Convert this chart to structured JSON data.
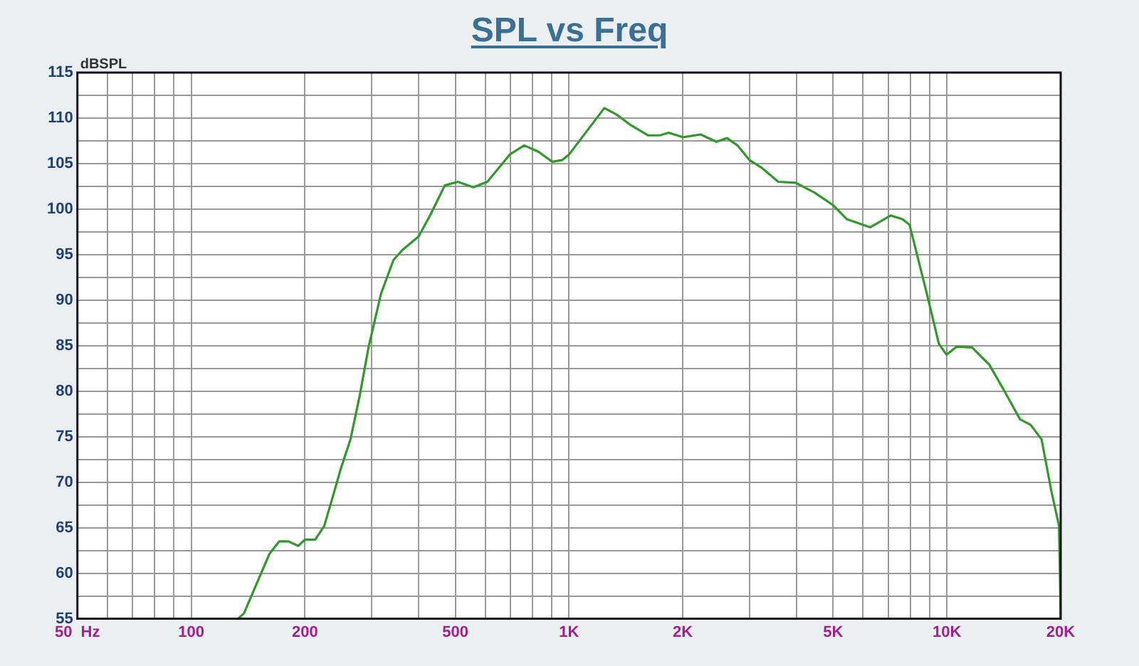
{
  "chart_data": {
    "type": "line",
    "title": "SPL vs Freq",
    "ylabel": "dBSPL",
    "log": "x",
    "grid": true,
    "marker": "none",
    "xlim": [
      50,
      20000
    ],
    "ylim": [
      55,
      115
    ],
    "xticks": [
      {
        "value": 50,
        "label": "50  Hz"
      },
      {
        "value": 60,
        "label": null
      },
      {
        "value": 70,
        "label": null
      },
      {
        "value": 80,
        "label": null
      },
      {
        "value": 90,
        "label": null
      },
      {
        "value": 100,
        "label": "100"
      },
      {
        "value": 200,
        "label": "200"
      },
      {
        "value": 300,
        "label": null
      },
      {
        "value": 400,
        "label": null
      },
      {
        "value": 500,
        "label": "500"
      },
      {
        "value": 600,
        "label": null
      },
      {
        "value": 700,
        "label": null
      },
      {
        "value": 800,
        "label": null
      },
      {
        "value": 900,
        "label": null
      },
      {
        "value": 1000,
        "label": "1K"
      },
      {
        "value": 2000,
        "label": "2K"
      },
      {
        "value": 3000,
        "label": null
      },
      {
        "value": 4000,
        "label": null
      },
      {
        "value": 5000,
        "label": "5K"
      },
      {
        "value": 6000,
        "label": null
      },
      {
        "value": 7000,
        "label": null
      },
      {
        "value": 8000,
        "label": null
      },
      {
        "value": 9000,
        "label": null
      },
      {
        "value": 10000,
        "label": "10K"
      },
      {
        "value": 20000,
        "label": "20K"
      }
    ],
    "yticks": [
      55,
      {
        "value": 57.5,
        "label": null
      },
      60,
      {
        "value": 62.5,
        "label": null
      },
      65,
      {
        "value": 67.5,
        "label": null
      },
      70,
      {
        "value": 72.5,
        "label": null
      },
      75,
      {
        "value": 77.5,
        "label": null
      },
      80,
      {
        "value": 82.5,
        "label": null
      },
      85,
      {
        "value": 87.5,
        "label": null
      },
      90,
      {
        "value": 92.5,
        "label": null
      },
      95,
      {
        "value": 97.5,
        "label": null
      },
      100,
      {
        "value": 102.5,
        "label": null
      },
      105,
      {
        "value": 107.5,
        "label": null
      },
      110,
      {
        "value": 112.5,
        "label": null
      },
      115
    ],
    "x": [
      133,
      138,
      161,
      171,
      181,
      192,
      200,
      213,
      225,
      234,
      249,
      264,
      279,
      295,
      318,
      343,
      362,
      400,
      430,
      469,
      508,
      558,
      608,
      697,
      761,
      830,
      903,
      960,
      1000,
      1240,
      1335,
      1460,
      1620,
      1740,
      1835,
      2000,
      2230,
      2455,
      2620,
      2790,
      3000,
      3220,
      3580,
      3980,
      4470,
      5010,
      5430,
      6270,
      7100,
      7620,
      7960,
      8850,
      9520,
      9980,
      10620,
      11660,
      12950,
      14200,
      15620,
      16660,
      17800,
      18900,
      19800,
      20000
    ],
    "series": [
      {
        "color": "#2f9a2a",
        "values": [
          55,
          55.6,
          62.1,
          63.5,
          63.5,
          63,
          63.7,
          63.7,
          65.2,
          67.6,
          71.5,
          74.7,
          79.4,
          84.9,
          90.7,
          94.4,
          95.5,
          97,
          99.4,
          102.6,
          103,
          102.4,
          103,
          106,
          107,
          106.3,
          105.2,
          105.4,
          106,
          111.1,
          110.4,
          109.2,
          108.1,
          108.1,
          108.4,
          107.9,
          108.2,
          107.4,
          107.8,
          107,
          105.4,
          104.6,
          103,
          102.9,
          101.8,
          100.4,
          98.9,
          98,
          99.3,
          98.9,
          98.3,
          90.7,
          85.2,
          84,
          84.9,
          84.8,
          82.9,
          80,
          76.9,
          76.3,
          74.7,
          69,
          65.2,
          55
        ]
      }
    ]
  }
}
